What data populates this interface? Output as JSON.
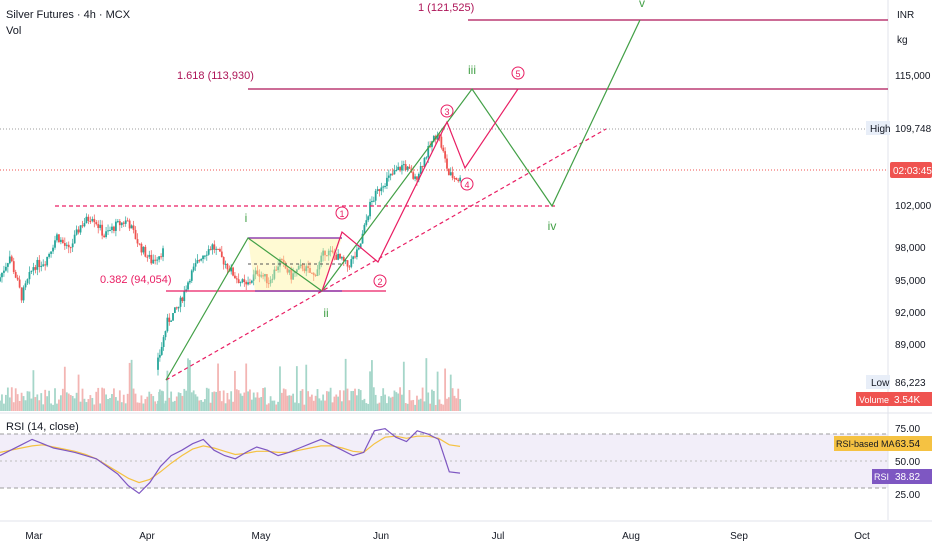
{
  "header": {
    "symbol_title": "Silver Futures · 4h · MCX",
    "volume_label": "Vol"
  },
  "axis": {
    "currency": "INR",
    "unit": "kg",
    "price_ticks": [
      "115,000",
      "102,000",
      "98,000",
      "95,000",
      "92,000",
      "89,000"
    ],
    "rsi_ticks": [
      "75.00",
      "50.00",
      "25.00"
    ],
    "months": [
      "Mar",
      "Apr",
      "May",
      "Jun",
      "Jul",
      "Aug",
      "Sep",
      "Oct"
    ]
  },
  "badges": {
    "high_label": "High",
    "high_value": "109,748",
    "low_label": "Low",
    "low_value": "86,223",
    "countdown": "02:03:45",
    "volume_label": "Volume",
    "volume_value": "3.54K",
    "rsi_ma_label": "RSI-based MA",
    "rsi_ma_value": "63.54",
    "rsi_label": "RSI",
    "rsi_value": "38.82"
  },
  "rsi_pane": {
    "title": "RSI (14, close)"
  },
  "annotations": {
    "fib_1": "1 (121,525)",
    "fib_1618": "1.618 (113,930)",
    "fib_0382": "0.382 (94,054)",
    "wave_i": "i",
    "wave_ii": "ii",
    "wave_iii": "iii",
    "wave_iv": "iv",
    "wave_v": "v",
    "sub_1": "1",
    "sub_2": "2",
    "sub_3": "3",
    "sub_4": "4",
    "sub_5": "5"
  },
  "colors": {
    "up": "#26a69a",
    "down": "#ef5350",
    "wave_green": "#43a047",
    "wave_pink": "#e91e63",
    "fib_line": "#ad1457",
    "rsi": "#7e57c2",
    "rsi_ma": "#f5c242"
  },
  "chart_data": {
    "type": "line",
    "x": [
      "Mar",
      "Apr",
      "May",
      "Jun",
      "Jul",
      "Aug",
      "Sep",
      "Oct"
    ],
    "price_range": [
      86000,
      123000
    ],
    "price_path": [
      [
        95000,
        97500,
        93500,
        96500,
        97000,
        99500,
        98000,
        100500,
        101500,
        99500,
        100500,
        101000,
        98500,
        97000,
        98000
      ],
      [
        86300,
        91000,
        92500,
        95500,
        97500,
        98500,
        97000,
        95500,
        94500,
        96000,
        95000,
        97000,
        95500,
        96500,
        95500,
        98000,
        97500,
        96500,
        98000,
        102500,
        104500,
        105500,
        106500,
        105000,
        107500,
        109750,
        105500,
        105000
      ]
    ],
    "rsi_range": [
      15,
      85
    ],
    "rsi": [
      55,
      60,
      65,
      70,
      66,
      62,
      60,
      58,
      55,
      52,
      45,
      38,
      27,
      20,
      30,
      45,
      55,
      60,
      66,
      70,
      60,
      55,
      52,
      58,
      63,
      60,
      55,
      58,
      62,
      66,
      70,
      65,
      60,
      55,
      58,
      78,
      80,
      72,
      68,
      78,
      75,
      70,
      40,
      38.82
    ],
    "rsi_ma": [
      58,
      60,
      62,
      64,
      65,
      63,
      61,
      59,
      56,
      52,
      46,
      40,
      34,
      30,
      33,
      40,
      48,
      55,
      61,
      64,
      62,
      59,
      56,
      57,
      59,
      59,
      58,
      58,
      60,
      62,
      64,
      64,
      62,
      59,
      58,
      66,
      72,
      73,
      71,
      73,
      73,
      71,
      65,
      63.54
    ]
  }
}
